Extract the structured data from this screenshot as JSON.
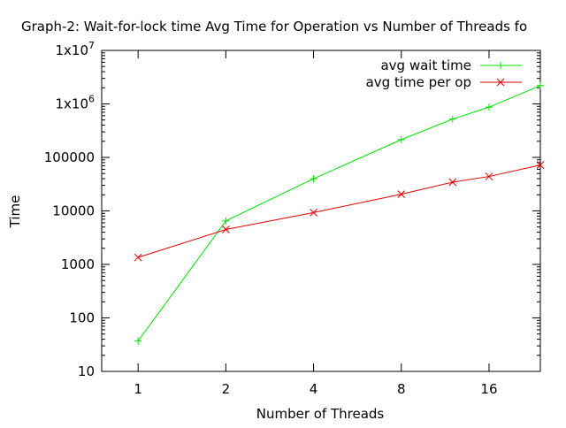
{
  "chart_data": {
    "type": "line",
    "title": "Graph-2: Wait-for-lock time  Avg Time for Operation vs Number of Threads fo",
    "xlabel": "Number of Threads",
    "ylabel": "Time",
    "x_scale": "log2",
    "y_scale": "log10",
    "xlim": [
      0.75,
      24
    ],
    "ylim": [
      10,
      10000000
    ],
    "x_ticks": [
      {
        "value": 1,
        "label": "1"
      },
      {
        "value": 2,
        "label": "2"
      },
      {
        "value": 4,
        "label": "4"
      },
      {
        "value": 8,
        "label": "8"
      },
      {
        "value": 16,
        "label": "16"
      }
    ],
    "y_ticks": [
      {
        "value": 10,
        "label": "10"
      },
      {
        "value": 100,
        "label": "100"
      },
      {
        "value": 1000,
        "label": "1000"
      },
      {
        "value": 10000,
        "label": "10000"
      },
      {
        "value": 100000,
        "label": "100000"
      },
      {
        "value": 1000000,
        "label": "1x10",
        "exp": "6"
      },
      {
        "value": 10000000,
        "label": "1x10",
        "exp": "7"
      }
    ],
    "grid": false,
    "legend_position": "top-right",
    "series": [
      {
        "name": "avg wait time",
        "color": "#00e000",
        "marker": "plus",
        "x": [
          1,
          2,
          4,
          8,
          12,
          16,
          24
        ],
        "y": [
          37,
          6500,
          40000,
          215000,
          520000,
          870000,
          2200000
        ]
      },
      {
        "name": "avg time per op",
        "color": "#e00000",
        "marker": "cross",
        "x": [
          1,
          2,
          4,
          8,
          12,
          16,
          24
        ],
        "y": [
          1350,
          4500,
          9300,
          20500,
          34500,
          44000,
          72000
        ]
      }
    ]
  }
}
